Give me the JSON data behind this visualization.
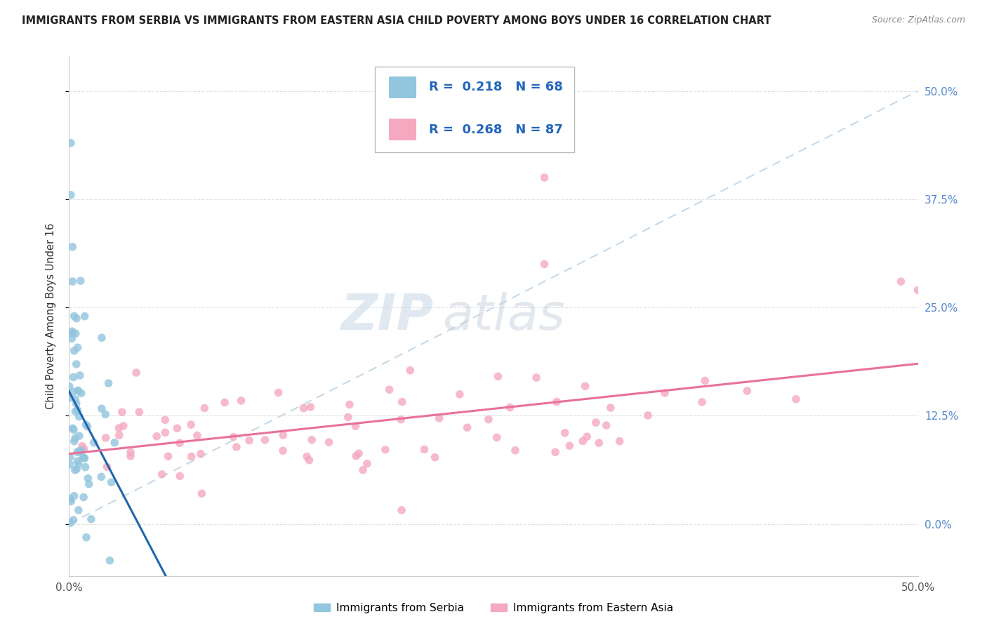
{
  "title": "IMMIGRANTS FROM SERBIA VS IMMIGRANTS FROM EASTERN ASIA CHILD POVERTY AMONG BOYS UNDER 16 CORRELATION CHART",
  "source": "Source: ZipAtlas.com",
  "ylabel": "Child Poverty Among Boys Under 16",
  "serbia_color": "#92c5de",
  "eastern_asia_color": "#f4a9c0",
  "serbia_line_color": "#2166ac",
  "eastern_asia_line_color": "#e8719a",
  "diagonal_color": "#c5d9e8",
  "r_serbia": 0.218,
  "n_serbia": 68,
  "r_eastern_asia": 0.268,
  "n_eastern_asia": 87,
  "xmin": 0.0,
  "xmax": 0.5,
  "ymin": -0.06,
  "ymax": 0.54,
  "ytick_vals": [
    0.0,
    0.125,
    0.25,
    0.375,
    0.5
  ],
  "ytick_labels": [
    "0.0%",
    "12.5%",
    "25.0%",
    "37.5%",
    "50.0%"
  ],
  "xtick_bottom_left": "0.0%",
  "xtick_bottom_right": "50.0%",
  "watermark_zip": "ZIP",
  "watermark_atlas": "atlas",
  "legend_label_serbia": "Immigrants from Serbia",
  "legend_label_eastern_asia": "Immigrants from Eastern Asia"
}
